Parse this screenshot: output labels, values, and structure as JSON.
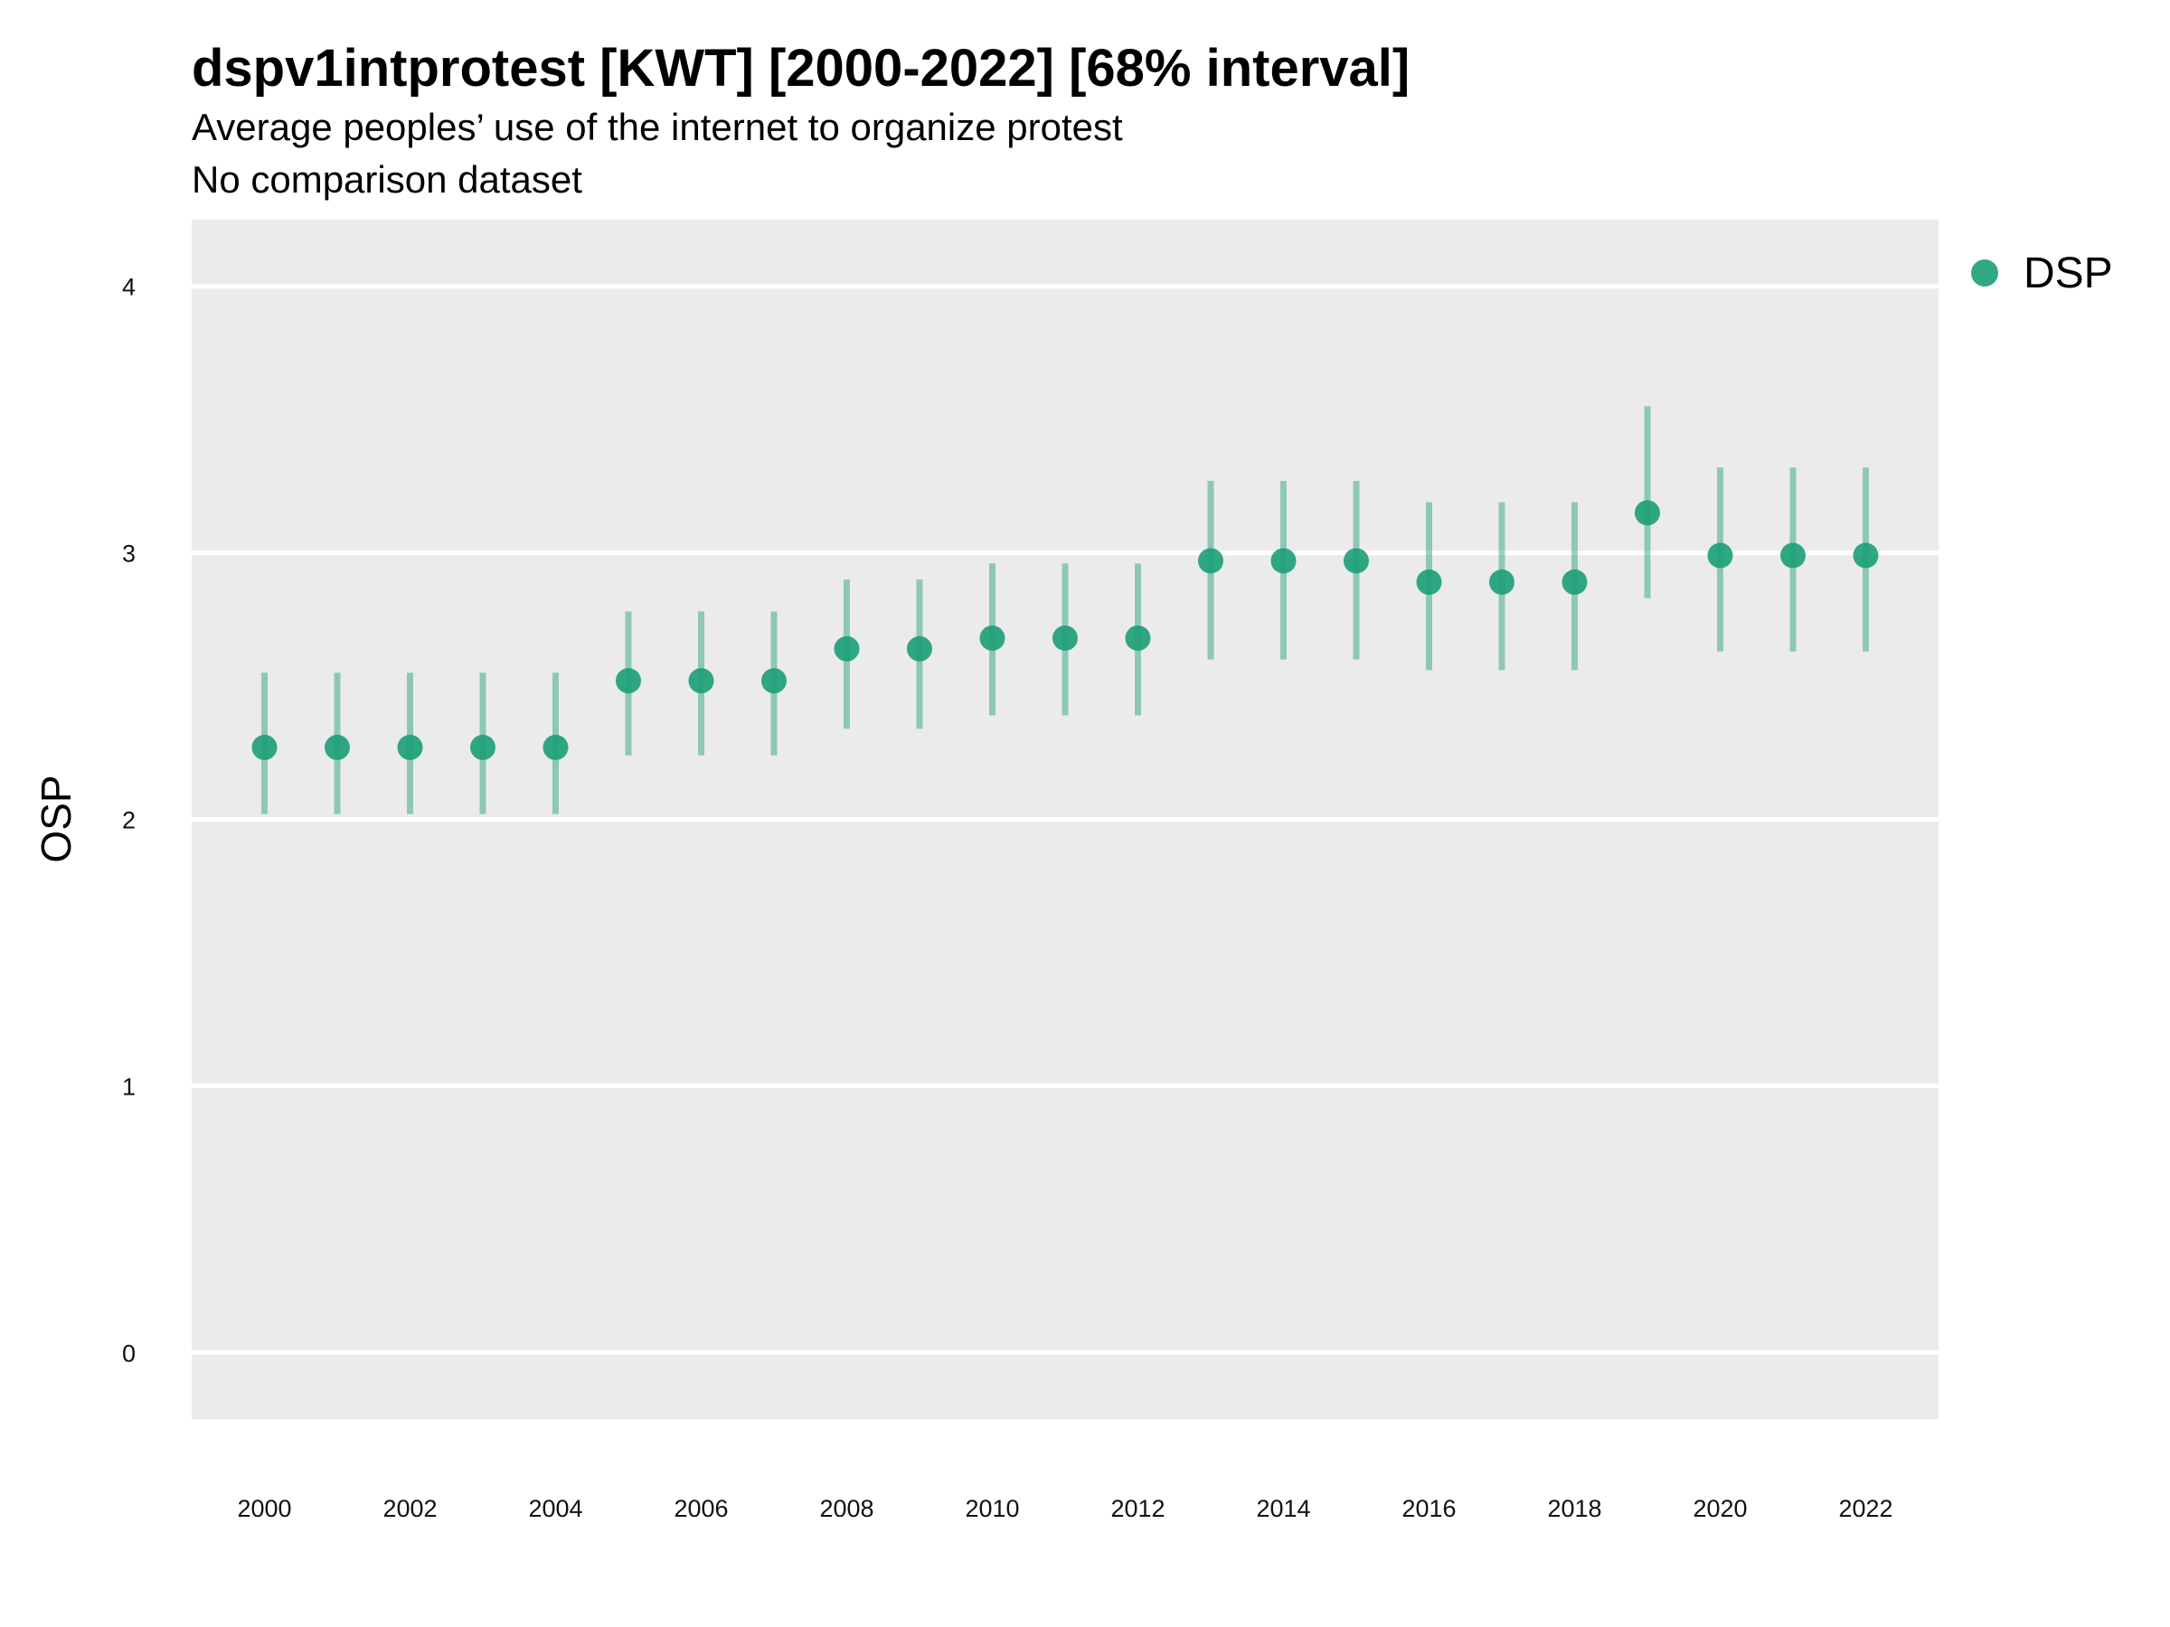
{
  "chart_data": {
    "type": "scatter",
    "title": "dspv1intprotest [KWT] [2000-2022] [68% interval]",
    "subtitle_lines": [
      "Average peoples’ use of the internet to organize protest",
      "No comparison dataset"
    ],
    "ylabel": "OSP",
    "xlabel": "",
    "ylim": [
      -0.25,
      4.25
    ],
    "y_ticks": [
      "0",
      "1",
      "2",
      "3",
      "4"
    ],
    "x_ticks": [
      "2000",
      "2002",
      "2004",
      "2006",
      "2008",
      "2010",
      "2012",
      "2014",
      "2016",
      "2018",
      "2020",
      "2022"
    ],
    "xlim": [
      1999,
      2023
    ],
    "grid": true,
    "legend_position": "right",
    "series": [
      {
        "name": "DSP",
        "color": "#1b9e77",
        "x": [
          2000,
          2001,
          2002,
          2003,
          2004,
          2005,
          2006,
          2007,
          2008,
          2009,
          2010,
          2011,
          2012,
          2013,
          2014,
          2015,
          2016,
          2017,
          2018,
          2019,
          2020,
          2021,
          2022
        ],
        "y": [
          2.27,
          2.27,
          2.27,
          2.27,
          2.27,
          2.52,
          2.52,
          2.52,
          2.64,
          2.64,
          2.68,
          2.68,
          2.68,
          2.97,
          2.97,
          2.97,
          2.89,
          2.89,
          2.89,
          3.15,
          2.99,
          2.99,
          2.99
        ],
        "lower": [
          2.02,
          2.02,
          2.02,
          2.02,
          2.02,
          2.24,
          2.24,
          2.24,
          2.34,
          2.34,
          2.39,
          2.39,
          2.39,
          2.6,
          2.6,
          2.6,
          2.56,
          2.56,
          2.56,
          2.83,
          2.63,
          2.63,
          2.63
        ],
        "upper": [
          2.55,
          2.55,
          2.55,
          2.55,
          2.55,
          2.78,
          2.78,
          2.78,
          2.9,
          2.9,
          2.96,
          2.96,
          2.96,
          3.27,
          3.27,
          3.27,
          3.19,
          3.19,
          3.19,
          3.55,
          3.32,
          3.32,
          3.32
        ]
      }
    ]
  }
}
